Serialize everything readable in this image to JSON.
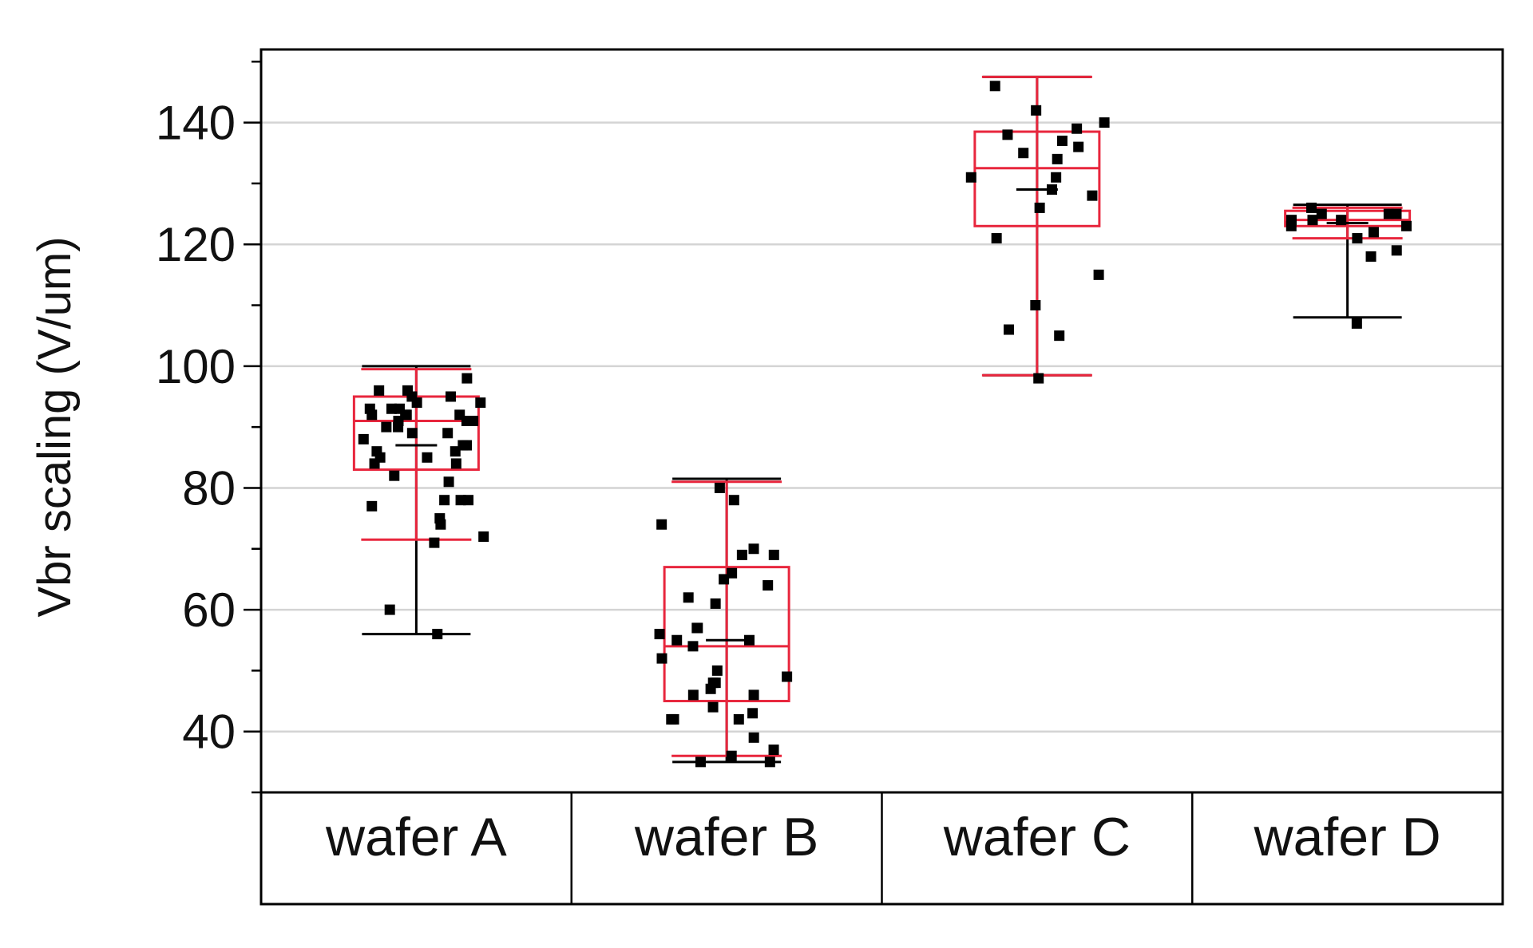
{
  "chart_data": {
    "type": "box",
    "ylabel": "Vbr scaling (V/um)",
    "xlabel": "",
    "ylim": [
      30,
      152
    ],
    "yticks": [
      40,
      60,
      80,
      100,
      120,
      140
    ],
    "grid": true,
    "colors": {
      "box": "#e8263d",
      "whisker": "#000000",
      "point": "#000000"
    },
    "categories": [
      "wafer A",
      "wafer B",
      "wafer C",
      "wafer D"
    ],
    "boxes": [
      {
        "category": "wafer A",
        "min": 56,
        "q1": 83,
        "median": 91,
        "q3": 95,
        "max": 100,
        "mean": 87,
        "quantile_low": 71.5,
        "quantile_high": 99.5,
        "points": [
          56,
          60,
          71,
          72,
          74,
          75,
          77,
          78,
          78,
          78,
          81,
          82,
          84,
          84,
          85,
          85,
          86,
          86,
          87,
          87,
          88,
          89,
          89,
          90,
          90,
          91,
          91,
          91,
          92,
          92,
          92,
          92,
          93,
          93,
          93,
          94,
          94,
          95,
          95,
          96,
          96,
          98
        ]
      },
      {
        "category": "wafer B",
        "min": 35,
        "q1": 45,
        "median": 54,
        "q3": 67,
        "max": 81.5,
        "mean": 55,
        "quantile_low": 36,
        "quantile_high": 81,
        "points": [
          35,
          35,
          36,
          37,
          39,
          42,
          42,
          42,
          43,
          44,
          46,
          46,
          47,
          48,
          48,
          49,
          50,
          52,
          54,
          55,
          55,
          56,
          57,
          57,
          61,
          62,
          64,
          65,
          66,
          69,
          69,
          70,
          74,
          78,
          80
        ]
      },
      {
        "category": "wafer C",
        "min": 98.5,
        "q1": 123,
        "median": 132.5,
        "q3": 138.5,
        "max": 147.5,
        "mean": 129,
        "quantile_low": 98.5,
        "quantile_high": 147.5,
        "points": [
          98,
          105,
          106,
          110,
          115,
          121,
          126,
          128,
          129,
          131,
          131,
          134,
          135,
          136,
          137,
          138,
          139,
          140,
          142,
          146
        ]
      },
      {
        "category": "wafer D",
        "min": 108,
        "q1": 123,
        "median": 124,
        "q3": 125.5,
        "max": 126.5,
        "mean": 123.5,
        "quantile_low": 121,
        "quantile_high": 126,
        "points": [
          107,
          118,
          119,
          121,
          122,
          123,
          123,
          124,
          124,
          124,
          125,
          125,
          125,
          126
        ]
      }
    ]
  }
}
